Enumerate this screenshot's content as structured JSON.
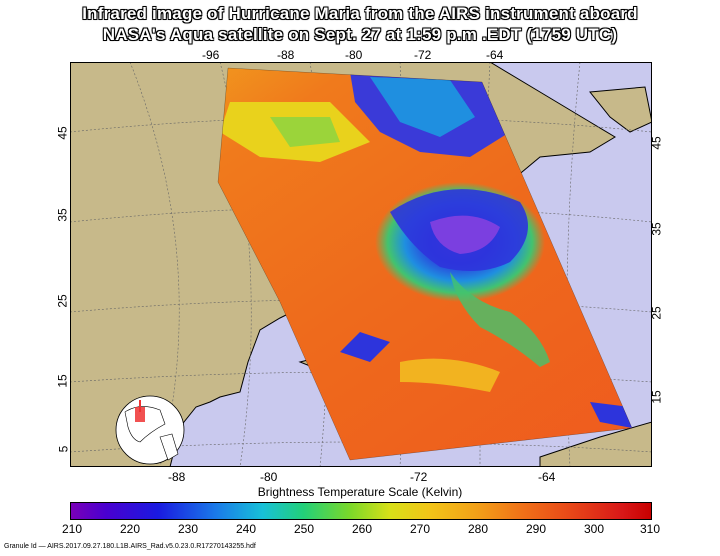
{
  "title": {
    "line1": "Infrared image of Hurricane Maria from the AIRS instrument aboard",
    "line2": "NASA's Aqua satellite on Sept. 27 at 1:59 p.m .EDT (1759 UTC)"
  },
  "axes": {
    "top_lon": [
      "-96",
      "-88",
      "-80",
      "-72",
      "-64"
    ],
    "bottom_lon": [
      "-88",
      "-80",
      "-72",
      "-64"
    ],
    "left_lat": [
      "45",
      "35",
      "25",
      "15",
      "5"
    ],
    "right_lat": [
      "45",
      "35",
      "25",
      "15"
    ]
  },
  "scale": {
    "title": "Brightness Temperature Scale (Kelvin)",
    "ticks": [
      "210",
      "220",
      "230",
      "240",
      "250",
      "260",
      "270",
      "280",
      "290",
      "300",
      "310"
    ]
  },
  "granule": "Granule Id — AIRS.2017.09.27.180.L1B.AIRS_Rad.v5.0.23.0.R17270143255.hdf",
  "colors": {
    "ocean": "#c9c9ee",
    "land": "#c7b98a",
    "warm": "#f06a1e",
    "cold": "#2b2bd6"
  }
}
